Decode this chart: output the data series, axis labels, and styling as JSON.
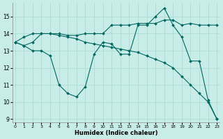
{
  "xlabel": "Humidex (Indice chaleur)",
  "bg_color": "#c8ece8",
  "grid_color": "#a8d8d0",
  "line_color": "#006860",
  "xlim_min": -0.3,
  "xlim_max": 23.3,
  "ylim_min": 8.8,
  "ylim_max": 15.8,
  "yticks": [
    9,
    10,
    11,
    12,
    13,
    14,
    15
  ],
  "xticks": [
    0,
    1,
    2,
    3,
    4,
    5,
    6,
    7,
    8,
    9,
    10,
    11,
    12,
    13,
    14,
    15,
    16,
    17,
    18,
    19,
    20,
    21,
    22,
    23
  ],
  "series": [
    {
      "x": [
        0,
        1,
        2,
        3,
        4,
        5,
        6,
        7,
        8,
        9,
        10,
        11,
        12,
        13,
        14,
        15,
        16,
        17,
        18,
        19,
        20,
        21,
        22,
        23
      ],
      "y": [
        13.5,
        13.3,
        13.0,
        13.0,
        12.7,
        11.0,
        10.5,
        10.3,
        10.9,
        12.8,
        13.5,
        13.4,
        12.8,
        12.8,
        14.5,
        14.5,
        15.0,
        15.5,
        14.5,
        13.8,
        12.4,
        12.4,
        10.1,
        9.0
      ]
    },
    {
      "x": [
        0,
        1,
        2,
        3,
        4,
        5,
        6,
        7,
        8,
        9,
        10,
        11,
        12,
        13,
        14,
        15,
        16,
        17,
        18,
        19,
        20,
        21,
        22,
        23
      ],
      "y": [
        13.5,
        13.3,
        13.5,
        14.0,
        14.0,
        13.9,
        13.8,
        13.7,
        13.5,
        13.4,
        13.3,
        13.2,
        13.1,
        13.0,
        12.9,
        12.7,
        12.5,
        12.3,
        12.0,
        11.5,
        11.0,
        10.5,
        10.0,
        9.0
      ]
    },
    {
      "x": [
        0,
        1,
        2,
        3,
        4,
        5,
        6,
        7,
        8,
        9,
        10,
        11,
        12,
        13,
        14,
        15,
        16,
        17,
        18,
        19,
        20,
        21,
        22,
        23
      ],
      "y": [
        13.5,
        13.8,
        14.0,
        14.0,
        14.0,
        14.0,
        13.9,
        13.9,
        14.0,
        14.0,
        14.0,
        14.5,
        14.5,
        14.5,
        14.6,
        14.6,
        14.6,
        14.8,
        14.8,
        14.5,
        14.6,
        14.5,
        14.5,
        14.5
      ]
    }
  ]
}
